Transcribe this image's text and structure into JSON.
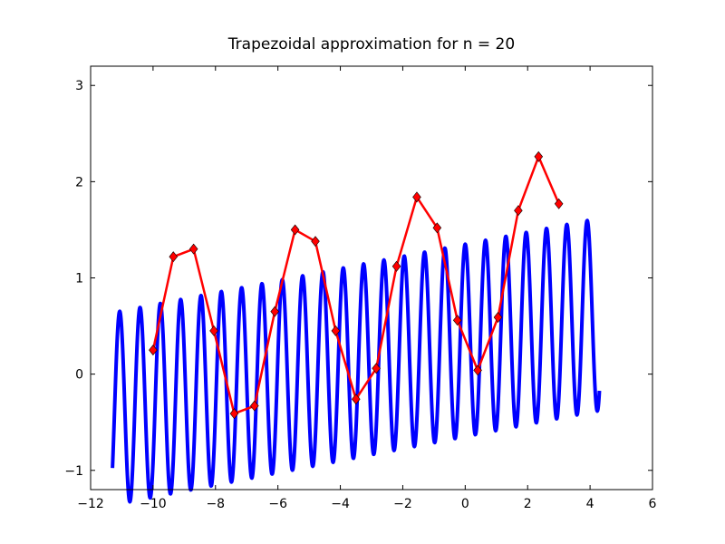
{
  "chart_data": {
    "type": "line",
    "title": "Trapezoidal approximation for n = 20",
    "xlabel": "",
    "ylabel": "",
    "xlim": [
      -12,
      6
    ],
    "ylim": [
      -1.2,
      3.2
    ],
    "xticks": [
      -12,
      -10,
      -8,
      -6,
      -4,
      -2,
      0,
      2,
      4,
      6
    ],
    "yticks": [
      -1,
      0,
      1,
      2,
      3
    ],
    "xtick_labels": [
      "−12",
      "−10",
      "−8",
      "−6",
      "−4",
      "−2",
      "0",
      "2",
      "4",
      "6"
    ],
    "ytick_labels": [
      "−1",
      "0",
      "1",
      "2",
      "3"
    ],
    "grid": false,
    "series": [
      {
        "kind": "function",
        "description": "oscillating curve",
        "color": "#0000ff",
        "x_range": [
          -11.3,
          4.3
        ],
        "approx": "y ≈ 0.35 + 0.063*x + 1.0*sin(9.65*x + 1.57)"
      },
      {
        "kind": "points",
        "color": "#ff0000",
        "marker": "diamond",
        "x": [
          -10.0,
          -9.35,
          -8.7,
          -8.05,
          -7.4,
          -6.75,
          -6.1,
          -5.45,
          -4.8,
          -4.15,
          -3.5,
          -2.85,
          -2.2,
          -1.55,
          -0.9,
          -0.25,
          0.4,
          1.05,
          1.7,
          2.35,
          3.0
        ],
        "y": [
          0.25,
          1.22,
          1.3,
          0.45,
          -0.41,
          -0.33,
          0.65,
          1.5,
          1.38,
          0.45,
          -0.26,
          0.06,
          1.12,
          1.84,
          1.52,
          0.56,
          0.04,
          0.59,
          1.7,
          2.26,
          1.77
        ]
      }
    ]
  }
}
